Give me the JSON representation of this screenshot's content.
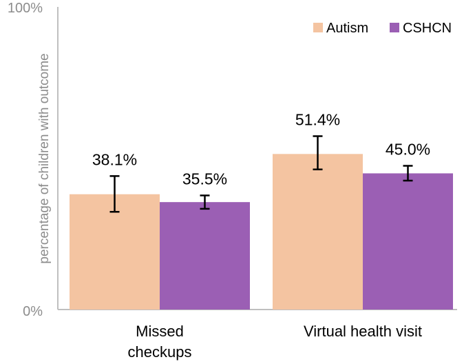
{
  "chart_data": {
    "type": "bar",
    "title": "",
    "xlabel": "",
    "ylabel": "percentage of children with  outcome",
    "ylim": [
      0,
      100
    ],
    "y_tick_labels": [
      "0%",
      "100%"
    ],
    "categories": [
      "Missed checkups",
      "Virtual health visit"
    ],
    "category_label_lines": [
      [
        "Missed",
        "checkups"
      ],
      [
        "Virtual health visit"
      ]
    ],
    "series": [
      {
        "name": "Autism",
        "color": "#f4c4a1",
        "values": [
          38.1,
          51.4
        ],
        "labels": [
          "38.1%",
          "51.4%"
        ],
        "error_low": [
          32.3,
          46.3
        ],
        "error_high": [
          44.1,
          57.3
        ]
      },
      {
        "name": "CSHCN",
        "color": "#9b5fb4",
        "values": [
          35.5,
          45.0
        ],
        "labels": [
          "35.5%",
          "45.0%"
        ],
        "error_low": [
          33.3,
          42.6
        ],
        "error_high": [
          37.7,
          47.5
        ]
      }
    ],
    "legend_position": "top-right",
    "grid": false
  }
}
